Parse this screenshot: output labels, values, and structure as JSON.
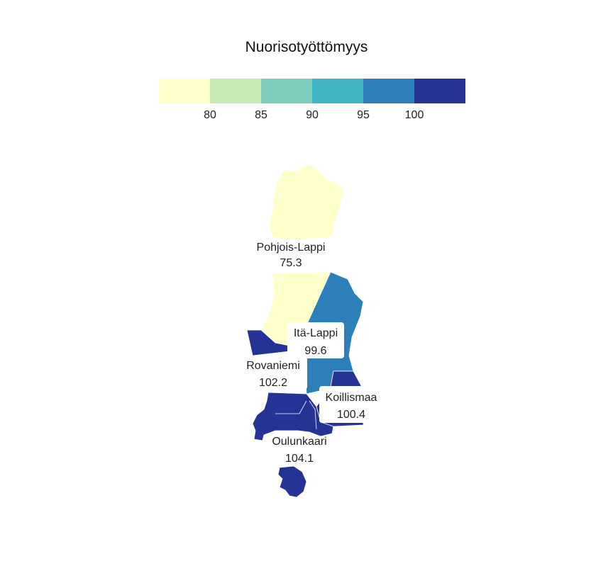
{
  "title": "Nuorisotyöttömyys",
  "legend": {
    "bins": [
      {
        "color": "#ffffcc"
      },
      {
        "color": "#c7e9b4"
      },
      {
        "color": "#7fcdbb"
      },
      {
        "color": "#41b6c4"
      },
      {
        "color": "#2c7fb8"
      },
      {
        "color": "#253494"
      }
    ],
    "ticks": [
      "80",
      "85",
      "90",
      "95",
      "100"
    ]
  },
  "regions": [
    {
      "name": "Pohjois-Lappi",
      "value": "75.3",
      "color": "#ffffcc"
    },
    {
      "name": "Itä-Lappi",
      "value": "99.6",
      "color": "#2c7fb8"
    },
    {
      "name": "Rovaniemi",
      "value": "102.2",
      "color": "#253494"
    },
    {
      "name": "Koillismaa",
      "value": "100.4",
      "color": "#253494"
    },
    {
      "name": "Oulunkaari",
      "value": "104.1",
      "color": "#253494"
    }
  ]
}
